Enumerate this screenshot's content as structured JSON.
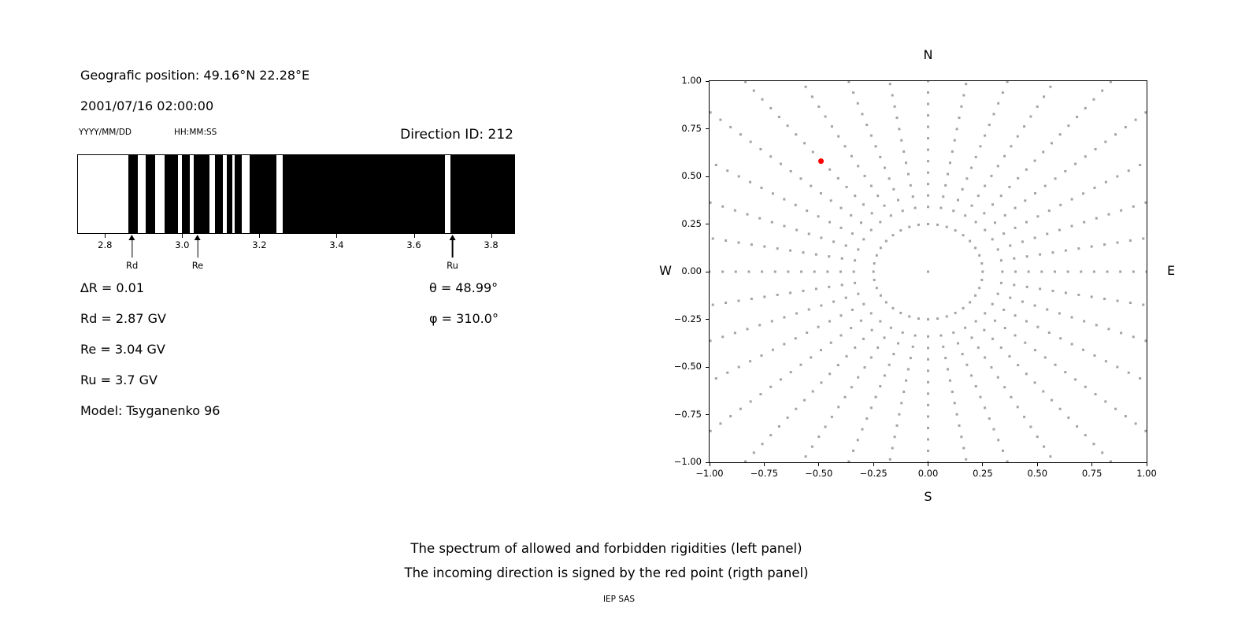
{
  "header": {
    "geo_position": "Geografic position: 49.16°N 22.28°E",
    "datetime": "2001/07/16 02:00:00",
    "date_format": "YYYY/MM/DD",
    "time_format": "HH:MM:SS",
    "direction_id": "Direction ID: 212"
  },
  "params": {
    "left": [
      "∆R = 0.01",
      "Rd = 2.87 GV",
      "Re = 3.04 GV",
      "Ru = 3.7 GV",
      "Model: Tsyganenko 96"
    ],
    "right": [
      "θ = 48.99°",
      "φ = 310.0°"
    ]
  },
  "caption": {
    "line1": "The spectrum of allowed and forbidden rigidities (left panel)",
    "line2": "The incoming direction is signed by the red point (rigth panel)",
    "credit": "IEP SAS"
  },
  "chart_data": [
    {
      "type": "barcode",
      "title": "Rigidity spectrum: black = allowed, white = forbidden bands",
      "x_unit": "GV",
      "x_range": [
        2.73,
        3.86
      ],
      "x_tick_values": [
        2.8,
        3.0,
        3.2,
        3.4,
        3.6,
        3.8
      ],
      "x_tick_labels": [
        "2.8",
        "3.0",
        "3.2",
        "3.4",
        "3.6",
        "3.8"
      ],
      "black_intervals": [
        [
          2.86,
          2.885
        ],
        [
          2.905,
          2.93
        ],
        [
          2.955,
          2.99
        ],
        [
          3.0,
          3.02
        ],
        [
          3.03,
          3.07
        ],
        [
          3.085,
          3.105
        ],
        [
          3.115,
          3.13
        ],
        [
          3.135,
          3.155
        ],
        [
          3.175,
          3.245
        ],
        [
          3.26,
          3.68
        ],
        [
          3.695,
          3.86
        ]
      ],
      "markers": [
        {
          "label": "Rd",
          "value": 2.87
        },
        {
          "label": "Re",
          "value": 3.04
        },
        {
          "label": "Ru",
          "value": 3.7
        }
      ],
      "bar_color": "#000000",
      "background": "#ffffff"
    },
    {
      "type": "scatter",
      "title": "Incoming direction map",
      "xlim": [
        -1,
        1
      ],
      "ylim": [
        -1,
        1
      ],
      "x_tick_values": [
        -1,
        -0.75,
        -0.5,
        -0.25,
        0,
        0.25,
        0.5,
        0.75,
        1
      ],
      "x_tick_labels": [
        "−1.00",
        "−0.75",
        "−0.50",
        "−0.25",
        "0.00",
        "0.25",
        "0.50",
        "0.75",
        "1.00"
      ],
      "y_tick_values": [
        -1,
        -0.75,
        -0.5,
        -0.25,
        0,
        0.25,
        0.5,
        0.75,
        1
      ],
      "y_tick_labels": [
        "−1.00",
        "−0.75",
        "−0.50",
        "−0.25",
        "0.00",
        "0.25",
        "0.50",
        "0.75",
        "1.00"
      ],
      "compass": {
        "top": "N",
        "right": "E",
        "bottom": "S",
        "left": "W"
      },
      "gray_dots": {
        "color": "#a3a3a3",
        "ray_count": 36,
        "ray_step_deg": 10,
        "r_start": 0.34,
        "r_step": 0.06,
        "r_max": 1.45,
        "ring_radius": 0.25,
        "ring_dots": 36,
        "center_dot": true
      },
      "red_point": {
        "x": -0.49,
        "y": 0.58,
        "color": "#ff0000"
      }
    }
  ]
}
